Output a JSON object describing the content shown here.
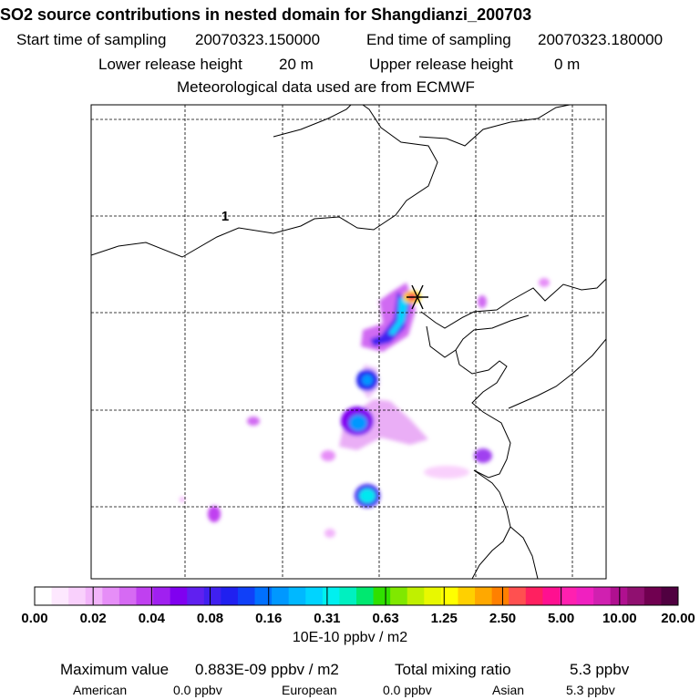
{
  "header": {
    "title": "SO2 source contributions in nested domain for Shangdianzi_200703",
    "start_label": "Start time of sampling",
    "start_value": "20070323.150000",
    "end_label": "End time of sampling",
    "end_value": "20070323.180000",
    "lower_label": "Lower release height",
    "lower_value": "20 m",
    "upper_label": "Upper release height",
    "upper_value": "0 m",
    "met_line": "Meteorological data used are from ECMWF"
  },
  "map": {
    "marker_label": "1",
    "station_marker_color": "#000000"
  },
  "colorbar": {
    "tick_labels": [
      "0.00",
      "0.02",
      "0.04",
      "0.08",
      "0.16",
      "0.31",
      "0.63",
      "1.25",
      "2.50",
      "5.00",
      "10.00",
      "20.00"
    ],
    "unit": "10E-10 ppbv / m2",
    "colors": [
      "#ffffff",
      "#fde8fe",
      "#f9d0fc",
      "#f2b4fa",
      "#e68ef7",
      "#d66af3",
      "#c040f0",
      "#a020f0",
      "#8000f0",
      "#6020f0",
      "#4020f0",
      "#2020f0",
      "#1040f8",
      "#0070ff",
      "#0098ff",
      "#00b8ff",
      "#00d4ff",
      "#00f0f0",
      "#00f0c0",
      "#00e870",
      "#30e000",
      "#80e800",
      "#c0f000",
      "#e8f800",
      "#ffff00",
      "#ffd000",
      "#ffa800",
      "#ff8000",
      "#ff5050",
      "#ff2060",
      "#ff1090",
      "#ff20b0",
      "#f020c0",
      "#d020b0",
      "#b01090",
      "#901070",
      "#700050",
      "#500040"
    ]
  },
  "stats": {
    "max_label": "Maximum value",
    "max_value": "0.883E-09 ppbv / m2",
    "total_label": "Total mixing ratio",
    "total_value": "5.3 ppbv",
    "american_label": "American",
    "american_value": "0.0 ppbv",
    "european_label": "European",
    "european_value": "0.0 ppbv",
    "asian_label": "Asian",
    "asian_value": "5.3 ppbv"
  }
}
